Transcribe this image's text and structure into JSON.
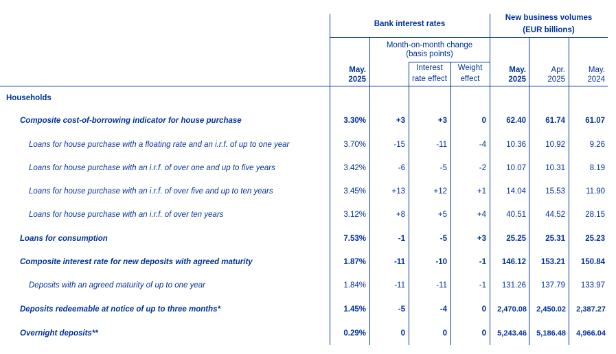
{
  "header": {
    "group_rates": "Bank interest rates",
    "group_volumes_line1": "New business volumes",
    "group_volumes_line2": "(EUR billions)",
    "mom_line1": "Month-on-month change",
    "mom_line2": "(basis points)",
    "ir_effect_line1": "Interest",
    "ir_effect_line2": "rate effect",
    "w_effect_line1": "Weight",
    "w_effect_line2": "effect",
    "col_rate_l1": "May.",
    "col_rate_l2": "2025",
    "col_v1_l1": "May.",
    "col_v1_l2": "2025",
    "col_v2_l1": "Apr.",
    "col_v2_l2": "2025",
    "col_v3_l1": "May.",
    "col_v3_l2": "2024"
  },
  "section_title": "Households",
  "rows": [
    {
      "label": "Composite cost-of-borrowing indicator for house purchase",
      "rate": "3.30%",
      "mom": "+3",
      "ir": "+3",
      "w": "0",
      "v1": "62.40",
      "v2": "61.74",
      "v3": "61.07"
    },
    {
      "label": "Loans for house purchase with a floating rate and an i.r.f. of up to one year",
      "rate": "3.70%",
      "mom": "-15",
      "ir": "-11",
      "w": "-4",
      "v1": "10.36",
      "v2": "10.92",
      "v3": "9.26"
    },
    {
      "label": "Loans for house purchase with an i.r.f. of over one and up to five years",
      "rate": "3.42%",
      "mom": "-6",
      "ir": "-5",
      "w": "-2",
      "v1": "10.07",
      "v2": "10.31",
      "v3": "8.19"
    },
    {
      "label": "Loans for house purchase with an i.r.f. of over five and up to ten years",
      "rate": "3.45%",
      "mom": "+13",
      "ir": "+12",
      "w": "+1",
      "v1": "14.04",
      "v2": "15.53",
      "v3": "11.90"
    },
    {
      "label": "Loans for house purchase with an i.r.f. of over ten years",
      "rate": "3.12%",
      "mom": "+8",
      "ir": "+5",
      "w": "+4",
      "v1": "40.51",
      "v2": "44.52",
      "v3": "28.15"
    },
    {
      "label": "Loans for consumption",
      "rate": "7.53%",
      "mom": "-1",
      "ir": "-5",
      "w": "+3",
      "v1": "25.25",
      "v2": "25.31",
      "v3": "25.23"
    },
    {
      "label": "Composite interest rate for new deposits with agreed maturity",
      "rate": "1.87%",
      "mom": "-11",
      "ir": "-10",
      "w": "-1",
      "v1": "146.12",
      "v2": "153.21",
      "v3": "150.84"
    },
    {
      "label": "Deposits with an agreed maturity of up to one year",
      "rate": "1.84%",
      "mom": "-11",
      "ir": "-11",
      "w": "-1",
      "v1": "131.26",
      "v2": "137.79",
      "v3": "133.97"
    },
    {
      "label": "Deposits redeemable at notice of up to three months*",
      "rate": "1.45%",
      "mom": "-5",
      "ir": "-4",
      "w": "0",
      "v1": "2,470.08",
      "v2": "2,450.02",
      "v3": "2,387.27"
    },
    {
      "label": "Overnight deposits**",
      "rate": "0.29%",
      "mom": "0",
      "ir": "0",
      "w": "0",
      "v1": "5,243.46",
      "v2": "5,186.48",
      "v3": "4,966.04"
    }
  ]
}
